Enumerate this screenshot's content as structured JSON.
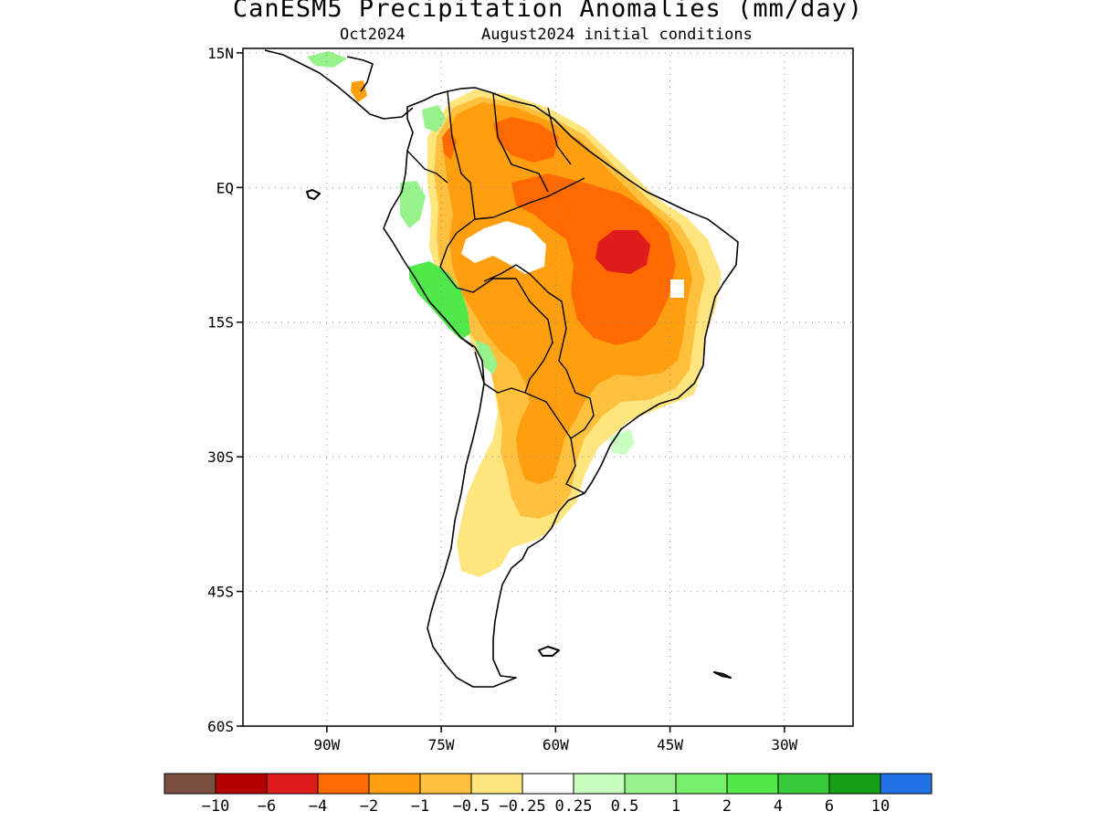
{
  "title": "CanESM5 Precipitation Anomalies (mm/day)",
  "subtitle_left": "Oct2024",
  "subtitle_right": "August2024 initial conditions",
  "map": {
    "lon_range": [
      -101,
      -21
    ],
    "lat_range": [
      -60,
      15.5
    ],
    "lon_ticks": [
      {
        "lon": -90,
        "label": "90W"
      },
      {
        "lon": -75,
        "label": "75W"
      },
      {
        "lon": -60,
        "label": "60W"
      },
      {
        "lon": -45,
        "label": "45W"
      },
      {
        "lon": -30,
        "label": "30W"
      }
    ],
    "lat_ticks": [
      {
        "lat": 15,
        "label": "15N"
      },
      {
        "lat": 0,
        "label": "EQ"
      },
      {
        "lat": -15,
        "label": "15S"
      },
      {
        "lat": -30,
        "label": "30S"
      },
      {
        "lat": -45,
        "label": "45S"
      },
      {
        "lat": -60,
        "label": "60S"
      }
    ],
    "grid": "dotted"
  },
  "colorbar": {
    "colors": [
      "#7b4f3f",
      "#b30000",
      "#e01b1b",
      "#ff6a00",
      "#ff9f0f",
      "#ffc13d",
      "#ffe57e",
      "#ffffff",
      "#c9ffc0",
      "#96f28a",
      "#79ef6b",
      "#50e84a",
      "#36c93a",
      "#14a014",
      "#2470e6"
    ],
    "labels": [
      "-10",
      "-6",
      "-4",
      "-2",
      "-1",
      "-0.5",
      "-0.25",
      "0.25",
      "0.5",
      "1",
      "2",
      "4",
      "6",
      "10"
    ]
  },
  "anomaly_regions": [
    {
      "level": "-0.5",
      "color": "#ffe57e"
    },
    {
      "level": "-1",
      "color": "#ffc13d"
    },
    {
      "level": "-2",
      "color": "#ff9f0f"
    },
    {
      "level": "-4",
      "color": "#ff6a00"
    },
    {
      "level": "-6",
      "color": "#e01b1b"
    },
    {
      "level": "0.5",
      "color": "#96f28a"
    },
    {
      "level": "1",
      "color": "#50e84a"
    }
  ]
}
